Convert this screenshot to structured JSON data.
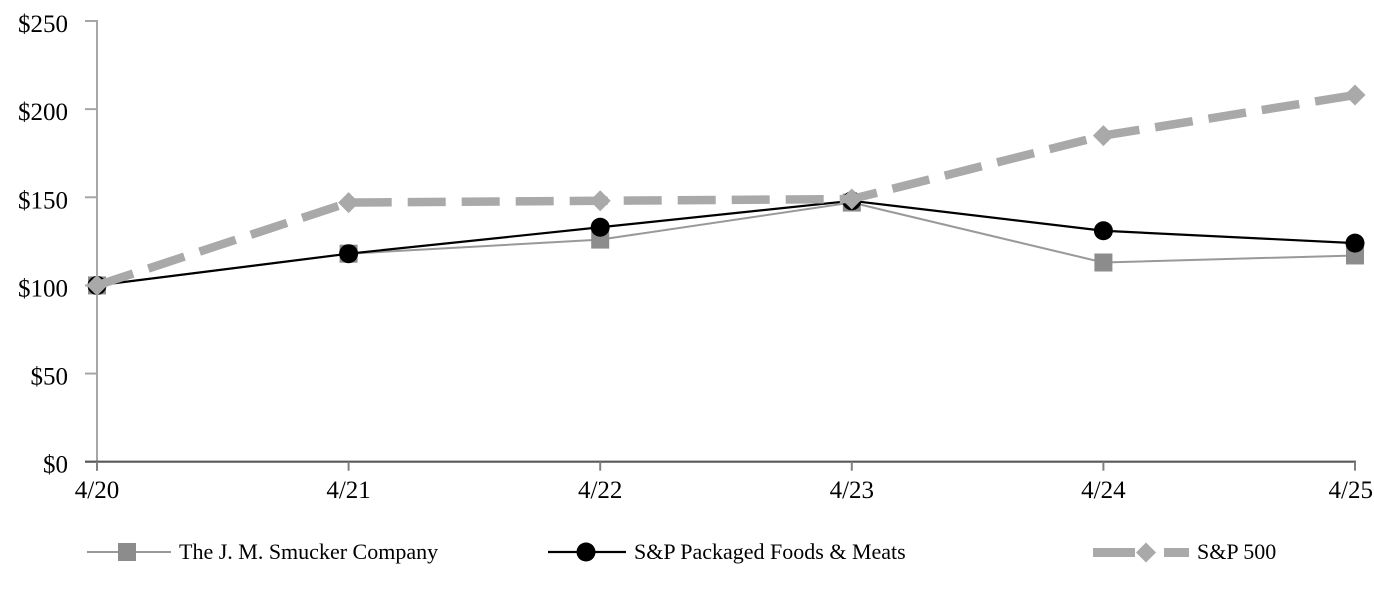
{
  "chart_data": {
    "type": "line",
    "categories": [
      "4/20",
      "4/21",
      "4/22",
      "4/23",
      "4/24",
      "4/25"
    ],
    "series": [
      {
        "name": "The J. M. Smucker Company",
        "values": [
          100,
          118,
          126,
          147,
          113,
          117
        ],
        "color": "#999999",
        "marker_color": "#8c8c8c",
        "marker": "square",
        "line_style": "solid",
        "line_width": 2
      },
      {
        "name": "S&P Packaged Foods & Meats",
        "values": [
          100,
          118,
          133,
          148,
          131,
          124
        ],
        "color": "#000000",
        "marker_color": "#000000",
        "marker": "circle",
        "line_style": "solid",
        "line_width": 2.2
      },
      {
        "name": "S&P 500",
        "values": [
          100,
          147,
          148,
          149,
          185,
          208
        ],
        "color": "#a9a9a9",
        "marker_color": "#a9a9a9",
        "marker": "diamond",
        "line_style": "dashed",
        "line_width": 8.5
      }
    ],
    "ylim": [
      0,
      250
    ],
    "y_ticks": [
      0,
      50,
      100,
      150,
      200,
      250
    ],
    "y_tick_labels": [
      "$0",
      "$50",
      "$100",
      "$150",
      "$200",
      "$250"
    ],
    "grid": false,
    "legend_position": "bottom",
    "axis_colors": {
      "x_axis": "#595959",
      "y_axis": "#a6a6a6",
      "x_tick": "#808080",
      "y_tick": "#a6a6a6",
      "label": "#000000"
    }
  }
}
